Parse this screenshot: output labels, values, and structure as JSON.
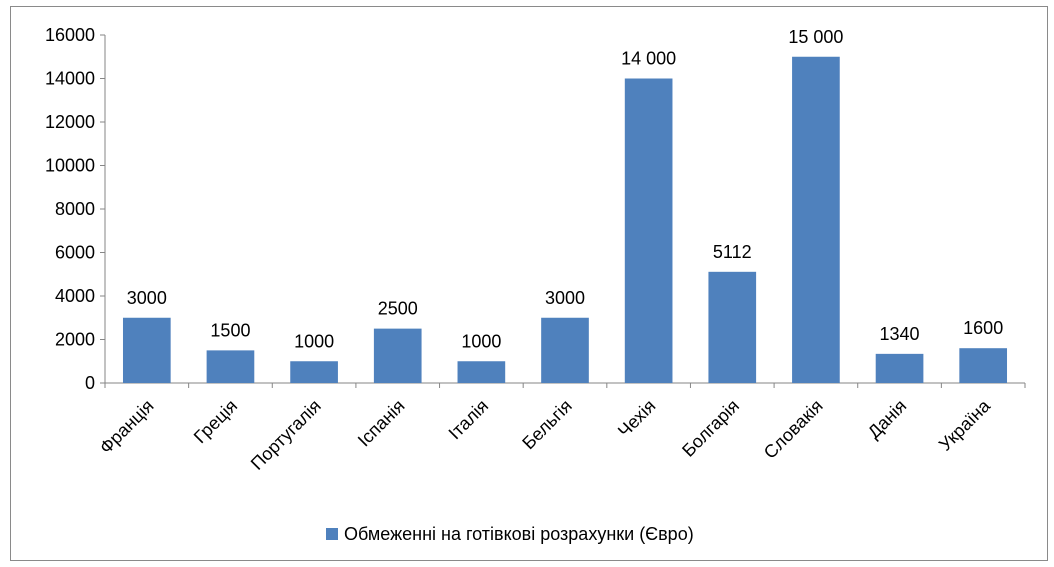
{
  "chart_data": {
    "type": "bar",
    "categories": [
      "Франція",
      "Греція",
      "Португалія",
      "Іспанія",
      "Італія",
      "Бельгія",
      "Чехія",
      "Болгарія",
      "Словакія",
      "Данія",
      "Україна"
    ],
    "series": [
      {
        "name": "Обмеженні на готівкові розрахунки (Євро)",
        "values": [
          3000,
          1500,
          1000,
          2500,
          1000,
          3000,
          14000,
          5112,
          15000,
          1340,
          1600
        ],
        "labels": [
          "3000",
          "1500",
          "1000",
          "2500",
          "1000",
          "3000",
          "14 000",
          "5112",
          "15 000",
          "1340",
          "1600"
        ],
        "color": "#4f81bd"
      }
    ],
    "yticks": [
      "0",
      "2000",
      "4000",
      "6000",
      "8000",
      "10000",
      "12000",
      "14000",
      "16000"
    ],
    "ylim": [
      0,
      16000
    ],
    "grid": false,
    "legend_position": "bottom"
  }
}
